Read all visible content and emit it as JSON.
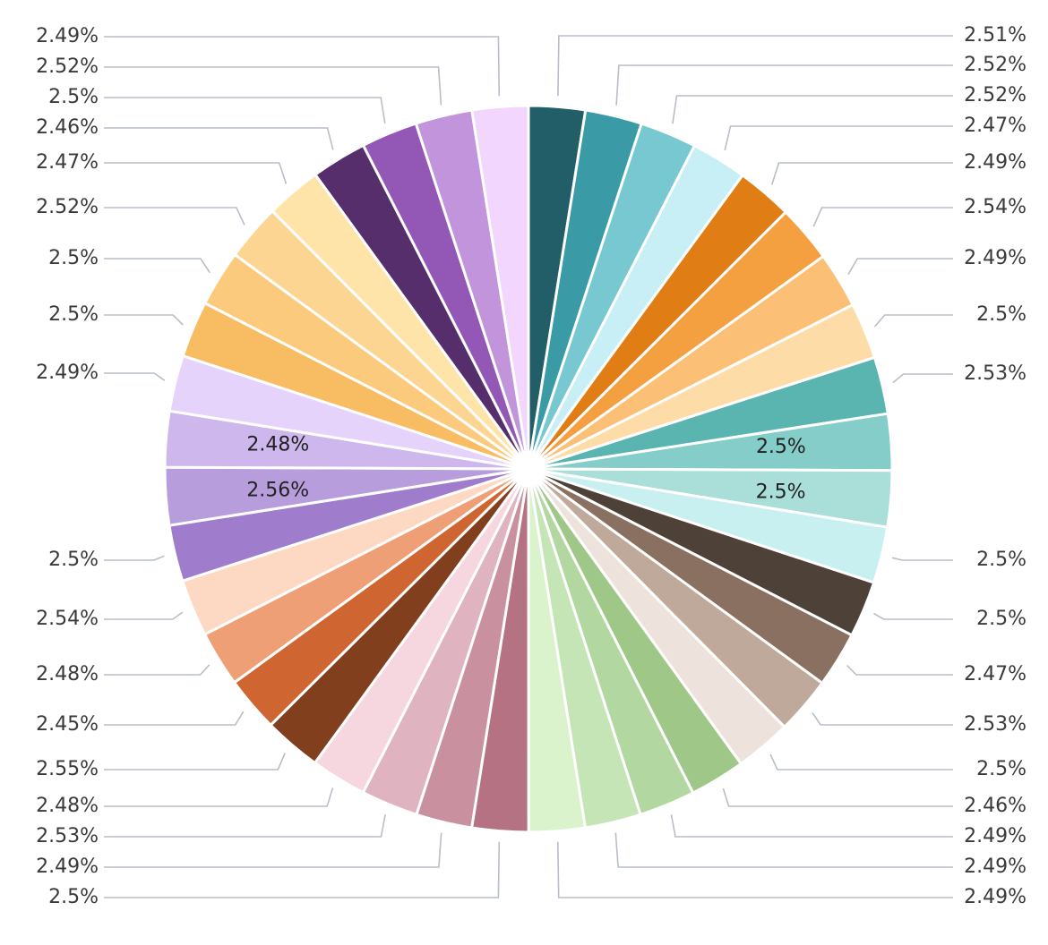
{
  "chart_data": {
    "type": "pie",
    "start_angle": "top",
    "direction": "clockwise",
    "legend": "none",
    "slices": [
      {
        "value": 2.51,
        "label": "2.51%",
        "color": "#225e68"
      },
      {
        "value": 2.52,
        "label": "2.52%",
        "color": "#3a9aa5"
      },
      {
        "value": 2.52,
        "label": "2.52%",
        "color": "#78c8d2"
      },
      {
        "value": 2.47,
        "label": "2.47%",
        "color": "#c8eef6"
      },
      {
        "value": 2.49,
        "label": "2.49%",
        "color": "#e07d14"
      },
      {
        "value": 2.54,
        "label": "2.54%",
        "color": "#f5a040"
      },
      {
        "value": 2.49,
        "label": "2.49%",
        "color": "#fbbf75"
      },
      {
        "value": 2.5,
        "label": "2.5%",
        "color": "#fddca7"
      },
      {
        "value": 2.53,
        "label": "2.53%",
        "color": "#5ab5b0"
      },
      {
        "value": 2.5,
        "label": "2.5%",
        "color": "#85cdc8"
      },
      {
        "value": 2.5,
        "label": "2.5%",
        "color": "#a9ded9"
      },
      {
        "value": 2.5,
        "label": "2.5%",
        "color": "#c9f0f0"
      },
      {
        "value": 2.5,
        "label": "2.5%",
        "color": "#4e4137"
      },
      {
        "value": 2.47,
        "label": "2.47%",
        "color": "#8a7060"
      },
      {
        "value": 2.53,
        "label": "2.53%",
        "color": "#bfa99a"
      },
      {
        "value": 2.5,
        "label": "2.5%",
        "color": "#ede3dc"
      },
      {
        "value": 2.46,
        "label": "2.46%",
        "color": "#9fc788"
      },
      {
        "value": 2.49,
        "label": "2.49%",
        "color": "#b3d7a1"
      },
      {
        "value": 2.49,
        "label": "2.49%",
        "color": "#c6e5b7"
      },
      {
        "value": 2.49,
        "label": "2.49%",
        "color": "#dbf3cd"
      },
      {
        "value": 2.5,
        "label": "2.5%",
        "color": "#b57283"
      },
      {
        "value": 2.49,
        "label": "2.49%",
        "color": "#c9919f"
      },
      {
        "value": 2.53,
        "label": "2.53%",
        "color": "#e0b3c1"
      },
      {
        "value": 2.48,
        "label": "2.48%",
        "color": "#f6d7e0"
      },
      {
        "value": 2.55,
        "label": "2.55%",
        "color": "#823f1e"
      },
      {
        "value": 2.45,
        "label": "2.45%",
        "color": "#cf6632"
      },
      {
        "value": 2.48,
        "label": "2.48%",
        "color": "#ef9f76"
      },
      {
        "value": 2.54,
        "label": "2.54%",
        "color": "#fdd8c2"
      },
      {
        "value": 2.5,
        "label": "2.5%",
        "color": "#a07ccc"
      },
      {
        "value": 2.56,
        "label": "2.56%",
        "color": "#b79ddc"
      },
      {
        "value": 2.48,
        "label": "2.48%",
        "color": "#cdb7ec"
      },
      {
        "value": 2.49,
        "label": "2.49%",
        "color": "#e5d3fb"
      },
      {
        "value": 2.5,
        "label": "2.5%",
        "color": "#f8bc62"
      },
      {
        "value": 2.5,
        "label": "2.5%",
        "color": "#fbca7c"
      },
      {
        "value": 2.52,
        "label": "2.52%",
        "color": "#fdd592"
      },
      {
        "value": 2.47,
        "label": "2.47%",
        "color": "#fee4a8"
      },
      {
        "value": 2.46,
        "label": "2.46%",
        "color": "#562e6c"
      },
      {
        "value": 2.5,
        "label": "2.5%",
        "color": "#9357b6"
      },
      {
        "value": 2.52,
        "label": "2.52%",
        "color": "#c194dc"
      },
      {
        "value": 2.49,
        "label": "2.49%",
        "color": "#f2d6fd"
      }
    ]
  }
}
